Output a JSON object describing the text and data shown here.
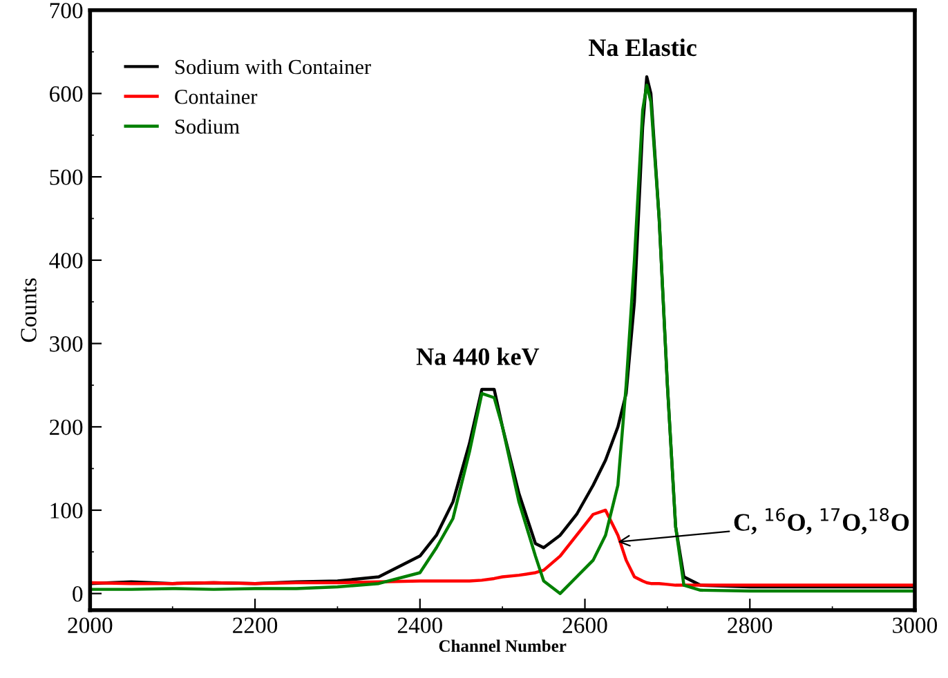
{
  "chart_data": {
    "type": "line",
    "xlabel": "Channel Number",
    "ylabel": "Counts",
    "xlim": [
      2000,
      3000
    ],
    "ylim": [
      -20,
      700
    ],
    "xticks": [
      2000,
      2200,
      2400,
      2600,
      2800,
      3000
    ],
    "yticks": [
      0,
      100,
      200,
      300,
      400,
      500,
      600,
      700
    ],
    "grid": false,
    "legend": "top left",
    "line_style": "solid",
    "marker": "none",
    "x": [
      2000,
      2050,
      2100,
      2150,
      2200,
      2250,
      2300,
      2350,
      2400,
      2420,
      2440,
      2460,
      2475,
      2490,
      2500,
      2520,
      2540,
      2550,
      2570,
      2590,
      2610,
      2625,
      2640,
      2650,
      2660,
      2670,
      2675,
      2680,
      2690,
      2700,
      2710,
      2720,
      2740,
      2800,
      2900,
      3000
    ],
    "series": [
      {
        "name": "Sodium with Container",
        "color": "#000000",
        "values": [
          12,
          14,
          12,
          13,
          12,
          14,
          15,
          20,
          45,
          70,
          110,
          180,
          245,
          245,
          200,
          120,
          60,
          55,
          70,
          95,
          130,
          160,
          200,
          240,
          350,
          560,
          620,
          600,
          450,
          250,
          80,
          20,
          10,
          8,
          8,
          8
        ]
      },
      {
        "name": "Container",
        "color": "#ff0000",
        "values": [
          13,
          12,
          12,
          13,
          12,
          13,
          13,
          14,
          15,
          15,
          15,
          15,
          16,
          18,
          20,
          22,
          25,
          28,
          45,
          70,
          95,
          100,
          70,
          40,
          20,
          15,
          13,
          12,
          12,
          11,
          10,
          10,
          10,
          10,
          10,
          10
        ]
      },
      {
        "name": "Sodium",
        "color": "#008000",
        "values": [
          5,
          5,
          6,
          5,
          6,
          6,
          8,
          12,
          25,
          55,
          90,
          170,
          240,
          235,
          200,
          110,
          45,
          15,
          0,
          20,
          40,
          70,
          130,
          250,
          400,
          580,
          610,
          590,
          450,
          250,
          80,
          10,
          4,
          3,
          3,
          3
        ]
      }
    ],
    "annotations": [
      "Na Elastic",
      "Na 440 keV",
      {
        "text": "C, $^{16}$O, $^{17}$O,$^{18}$O",
        "x": 2640,
        "y": 62
      }
    ]
  }
}
